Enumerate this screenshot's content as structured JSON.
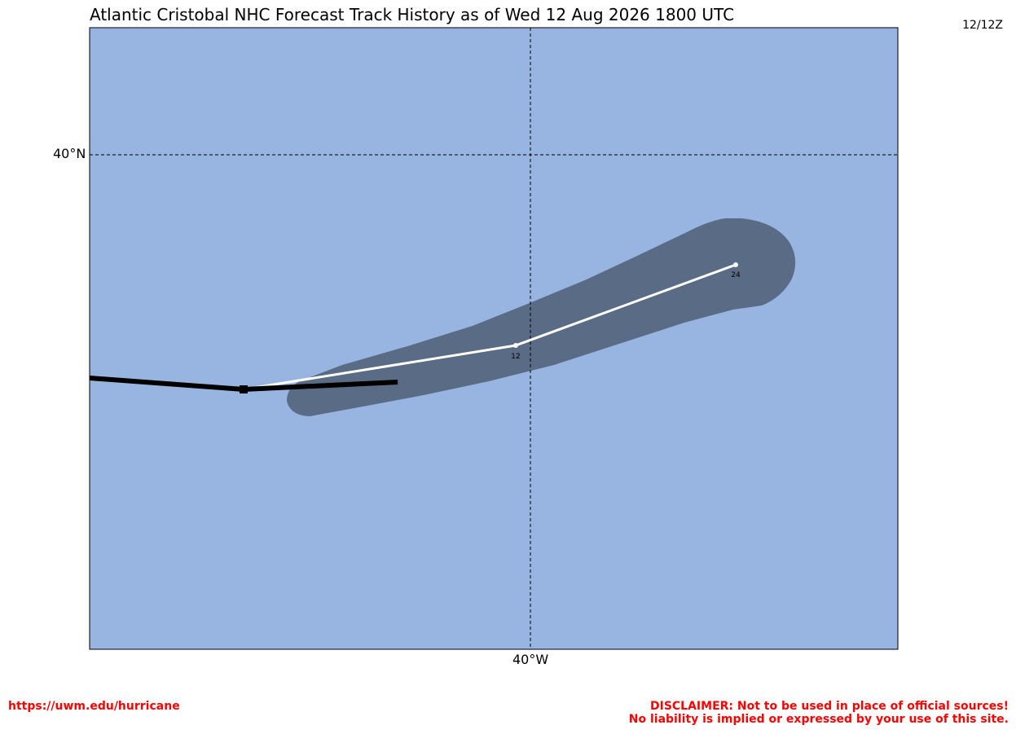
{
  "title": "Atlantic Cristobal NHC Forecast Track History as of Wed 12 Aug 2026 1800 UTC",
  "timestamp": "12/12Z",
  "map": {
    "ocean_color": "#98b5e2",
    "cone_color": "#5a6b85",
    "gridlines": {
      "latitude_label": "40°N",
      "longitude_label": "40°W"
    },
    "forecast_points": [
      {
        "hour_label": "12"
      },
      {
        "hour_label": "24"
      }
    ]
  },
  "footer": {
    "url": "https://uwm.edu/hurricane",
    "disclaimer_line1": "DISCLAIMER: Not to be used in place of official sources!",
    "disclaimer_line2": "No liability is implied or expressed by your use of this site."
  }
}
